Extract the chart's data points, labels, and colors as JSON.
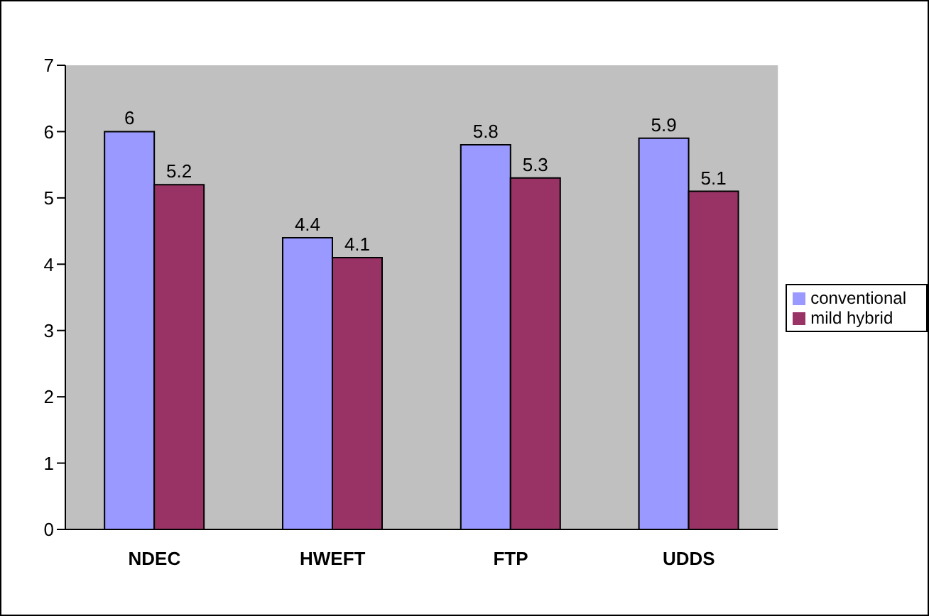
{
  "chart_data": {
    "type": "bar",
    "categories": [
      "NDEC",
      "HWEFT",
      "FTP",
      "UDDS"
    ],
    "series": [
      {
        "name": "conventional",
        "color": "#9999ff",
        "values": [
          6,
          4.4,
          5.8,
          5.9
        ]
      },
      {
        "name": "mild hybrid",
        "color": "#993366",
        "values": [
          5.2,
          4.1,
          5.3,
          5.1
        ]
      }
    ],
    "ylim": [
      0,
      7
    ],
    "yticks": [
      0,
      1,
      2,
      3,
      4,
      5,
      6,
      7
    ],
    "grid": false,
    "legend": "right",
    "data_labels": true
  }
}
